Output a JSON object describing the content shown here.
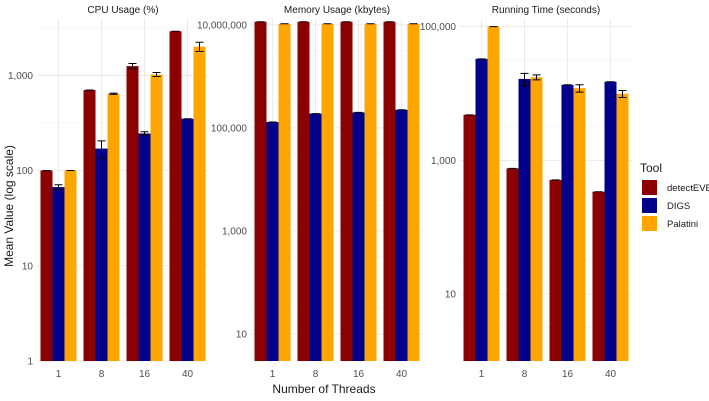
{
  "chart_data": {
    "type": "bar",
    "scale": "log",
    "categories": [
      "1",
      "8",
      "16",
      "40"
    ],
    "xlabel": "Number of Threads",
    "ylabel": "Mean Value (log scale)",
    "legend": {
      "title": "Tool",
      "position": "right",
      "entries": [
        {
          "name": "detectEVE",
          "color": "#8b0000"
        },
        {
          "name": "DIGS",
          "color": "#00008b"
        },
        {
          "name": "Palatini",
          "color": "#ffa500"
        }
      ]
    },
    "panels": [
      {
        "title": "CPU Usage (%)",
        "ylim": [
          1,
          3900
        ],
        "ticks": [
          1,
          10,
          100,
          1000
        ],
        "tick_labels": [
          "1",
          "10",
          "100",
          "1,000"
        ],
        "series": [
          {
            "name": "detectEVE",
            "values": [
              100,
              700,
              1250,
              2900
            ],
            "errors": [
              0,
              0,
              80,
              0
            ]
          },
          {
            "name": "DIGS",
            "values": [
              67,
              170,
              245,
              350
            ],
            "errors": [
              4,
              35,
              10,
              0
            ]
          },
          {
            "name": "Palatini",
            "values": [
              100,
              640,
              1020,
              2000
            ],
            "errors": [
              0,
              10,
              50,
              220
            ]
          }
        ]
      },
      {
        "title": "Memory Usage (kbytes)",
        "ylim": [
          3,
          13000000
        ],
        "ticks": [
          10,
          1000,
          100000,
          10000000
        ],
        "tick_labels": [
          "10",
          "1,000",
          "100,000",
          "10,000,000"
        ],
        "series": [
          {
            "name": "detectEVE",
            "values": [
              11500000,
              11500000,
              11500000,
              11500000
            ],
            "errors": [
              0,
              0,
              0,
              0
            ]
          },
          {
            "name": "DIGS",
            "values": [
              130000,
              190000,
              200000,
              225000
            ],
            "errors": [
              0,
              0,
              0,
              0
            ]
          },
          {
            "name": "Palatini",
            "values": [
              10500000,
              10500000,
              10500000,
              10500000
            ],
            "errors": [
              0,
              0,
              0,
              0
            ]
          }
        ]
      },
      {
        "title": "Running Time (seconds)",
        "ylim": [
          1,
          130000
        ],
        "ticks": [
          10,
          1000,
          100000
        ],
        "tick_labels": [
          "10",
          "1,000",
          "100,000"
        ],
        "series": [
          {
            "name": "detectEVE",
            "values": [
              4800,
              760,
              510,
              340
            ],
            "errors": [
              0,
              0,
              0,
              0
            ]
          },
          {
            "name": "DIGS",
            "values": [
              33000,
              16500,
              13500,
              15000
            ],
            "errors": [
              0,
              3500,
              0,
              0
            ]
          },
          {
            "name": "Palatini",
            "values": [
              100000,
              17500,
              12000,
              9900
            ],
            "errors": [
              0,
              1500,
              1500,
              1200
            ]
          }
        ]
      }
    ]
  }
}
